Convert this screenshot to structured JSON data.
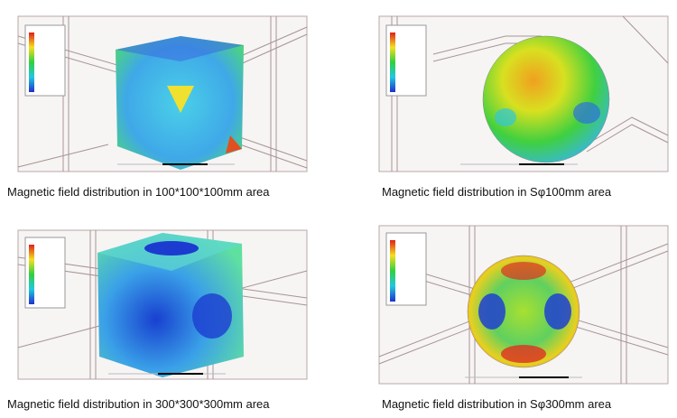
{
  "figures": [
    {
      "caption": "Magnetic field distribution in 100*100*100mm area"
    },
    {
      "caption": "Magnetic field distribution in Sφ100mm area"
    },
    {
      "caption": "Magnetic field distribution in 300*300*300mm area"
    },
    {
      "caption": "Magnetic field distribution in Sφ300mm area"
    }
  ]
}
